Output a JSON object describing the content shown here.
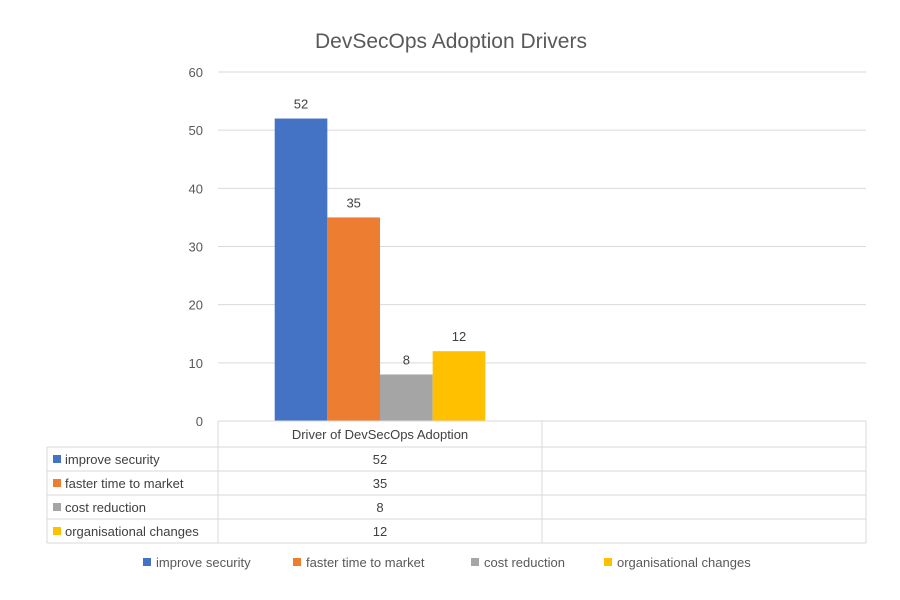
{
  "chart_data": {
    "type": "bar",
    "title": "DevSecOps Adoption Drivers",
    "xlabel": "",
    "ylabel": "",
    "ylim": [
      0,
      60
    ],
    "yticks": [
      0,
      10,
      20,
      30,
      40,
      50,
      60
    ],
    "grid": true,
    "categories": [
      "Driver of DevSecOps Adoption",
      ""
    ],
    "series": [
      {
        "name": "improve security",
        "color": "#4472C4",
        "values": [
          52,
          null
        ]
      },
      {
        "name": "faster time to market",
        "color": "#ED7D31",
        "values": [
          35,
          null
        ]
      },
      {
        "name": "cost reduction",
        "color": "#A5A5A5",
        "values": [
          8,
          null
        ]
      },
      {
        "name": "organisational changes",
        "color": "#FFC000",
        "values": [
          12,
          null
        ]
      }
    ],
    "data_labels": true,
    "data_table": true,
    "legend": "bottom"
  }
}
